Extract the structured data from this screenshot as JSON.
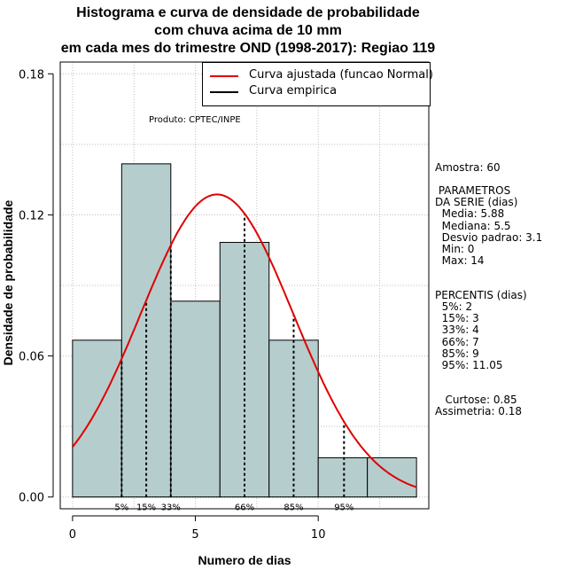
{
  "chart_data": {
    "type": "histogram",
    "title": [
      "Histograma e curva de densidade de probabilidade",
      "com chuva acima de 10 mm",
      "em cada mes do trimestre OND (1998-2017): Regiao 119"
    ],
    "xlabel": "Numero de dias",
    "ylabel": "Densidade de probabilidade",
    "xlim": [
      -0.5,
      14.5
    ],
    "ylim": [
      -0.005,
      0.185
    ],
    "x_ticks": [
      0,
      5,
      10
    ],
    "x_tick_labels": [
      "0",
      "5",
      "10"
    ],
    "y_ticks": [
      0.0,
      0.06,
      0.12,
      0.18
    ],
    "y_tick_labels": [
      "0.00",
      "0.06",
      "0.12",
      "0.18"
    ],
    "grid": true,
    "bins": [
      {
        "start": 0,
        "end": 2,
        "density": 0.0667
      },
      {
        "start": 2,
        "end": 4,
        "density": 0.1417
      },
      {
        "start": 4,
        "end": 6,
        "density": 0.0833
      },
      {
        "start": 6,
        "end": 8,
        "density": 0.1083
      },
      {
        "start": 8,
        "end": 10,
        "density": 0.0667
      },
      {
        "start": 10,
        "end": 12,
        "density": 0.0167
      },
      {
        "start": 12,
        "end": 14,
        "density": 0.0167
      }
    ],
    "bar_color": "#b6cdcd",
    "fitted_curve": {
      "name": "Curva ajustada (funcao Normal)",
      "distribution": "normal",
      "mean": 5.88,
      "sd": 3.1,
      "color": "#e00000"
    },
    "empirical_curve": {
      "name": "Curva empirica",
      "color": "#000000"
    },
    "percentile_lines": [
      {
        "label": "5%",
        "x": 2
      },
      {
        "label": "15%",
        "x": 3
      },
      {
        "label": "33%",
        "x": 4
      },
      {
        "label": "66%",
        "x": 7
      },
      {
        "label": "85%",
        "x": 9
      },
      {
        "label": "95%",
        "x": 11.05
      }
    ],
    "legend_placement": "top-right"
  },
  "annotations": {
    "product": "Produto: CPTEC/INPE",
    "stats_lines": [
      "Amostra: 60",
      "",
      " PARAMETROS",
      "DA SERIE (dias)",
      "  Media: 5.88",
      "  Mediana: 5.5",
      "  Desvio padrao: 3.1",
      "  Min: 0",
      "  Max: 14",
      "",
      "",
      "PERCENTIS (dias)",
      "  5%: 2",
      "  15%: 3",
      "  33%: 4",
      "  66%: 7",
      "  85%: 9",
      "  95%: 11.05",
      "",
      "",
      "   Curtose: 0.85",
      "Assimetria: 0.18"
    ]
  }
}
